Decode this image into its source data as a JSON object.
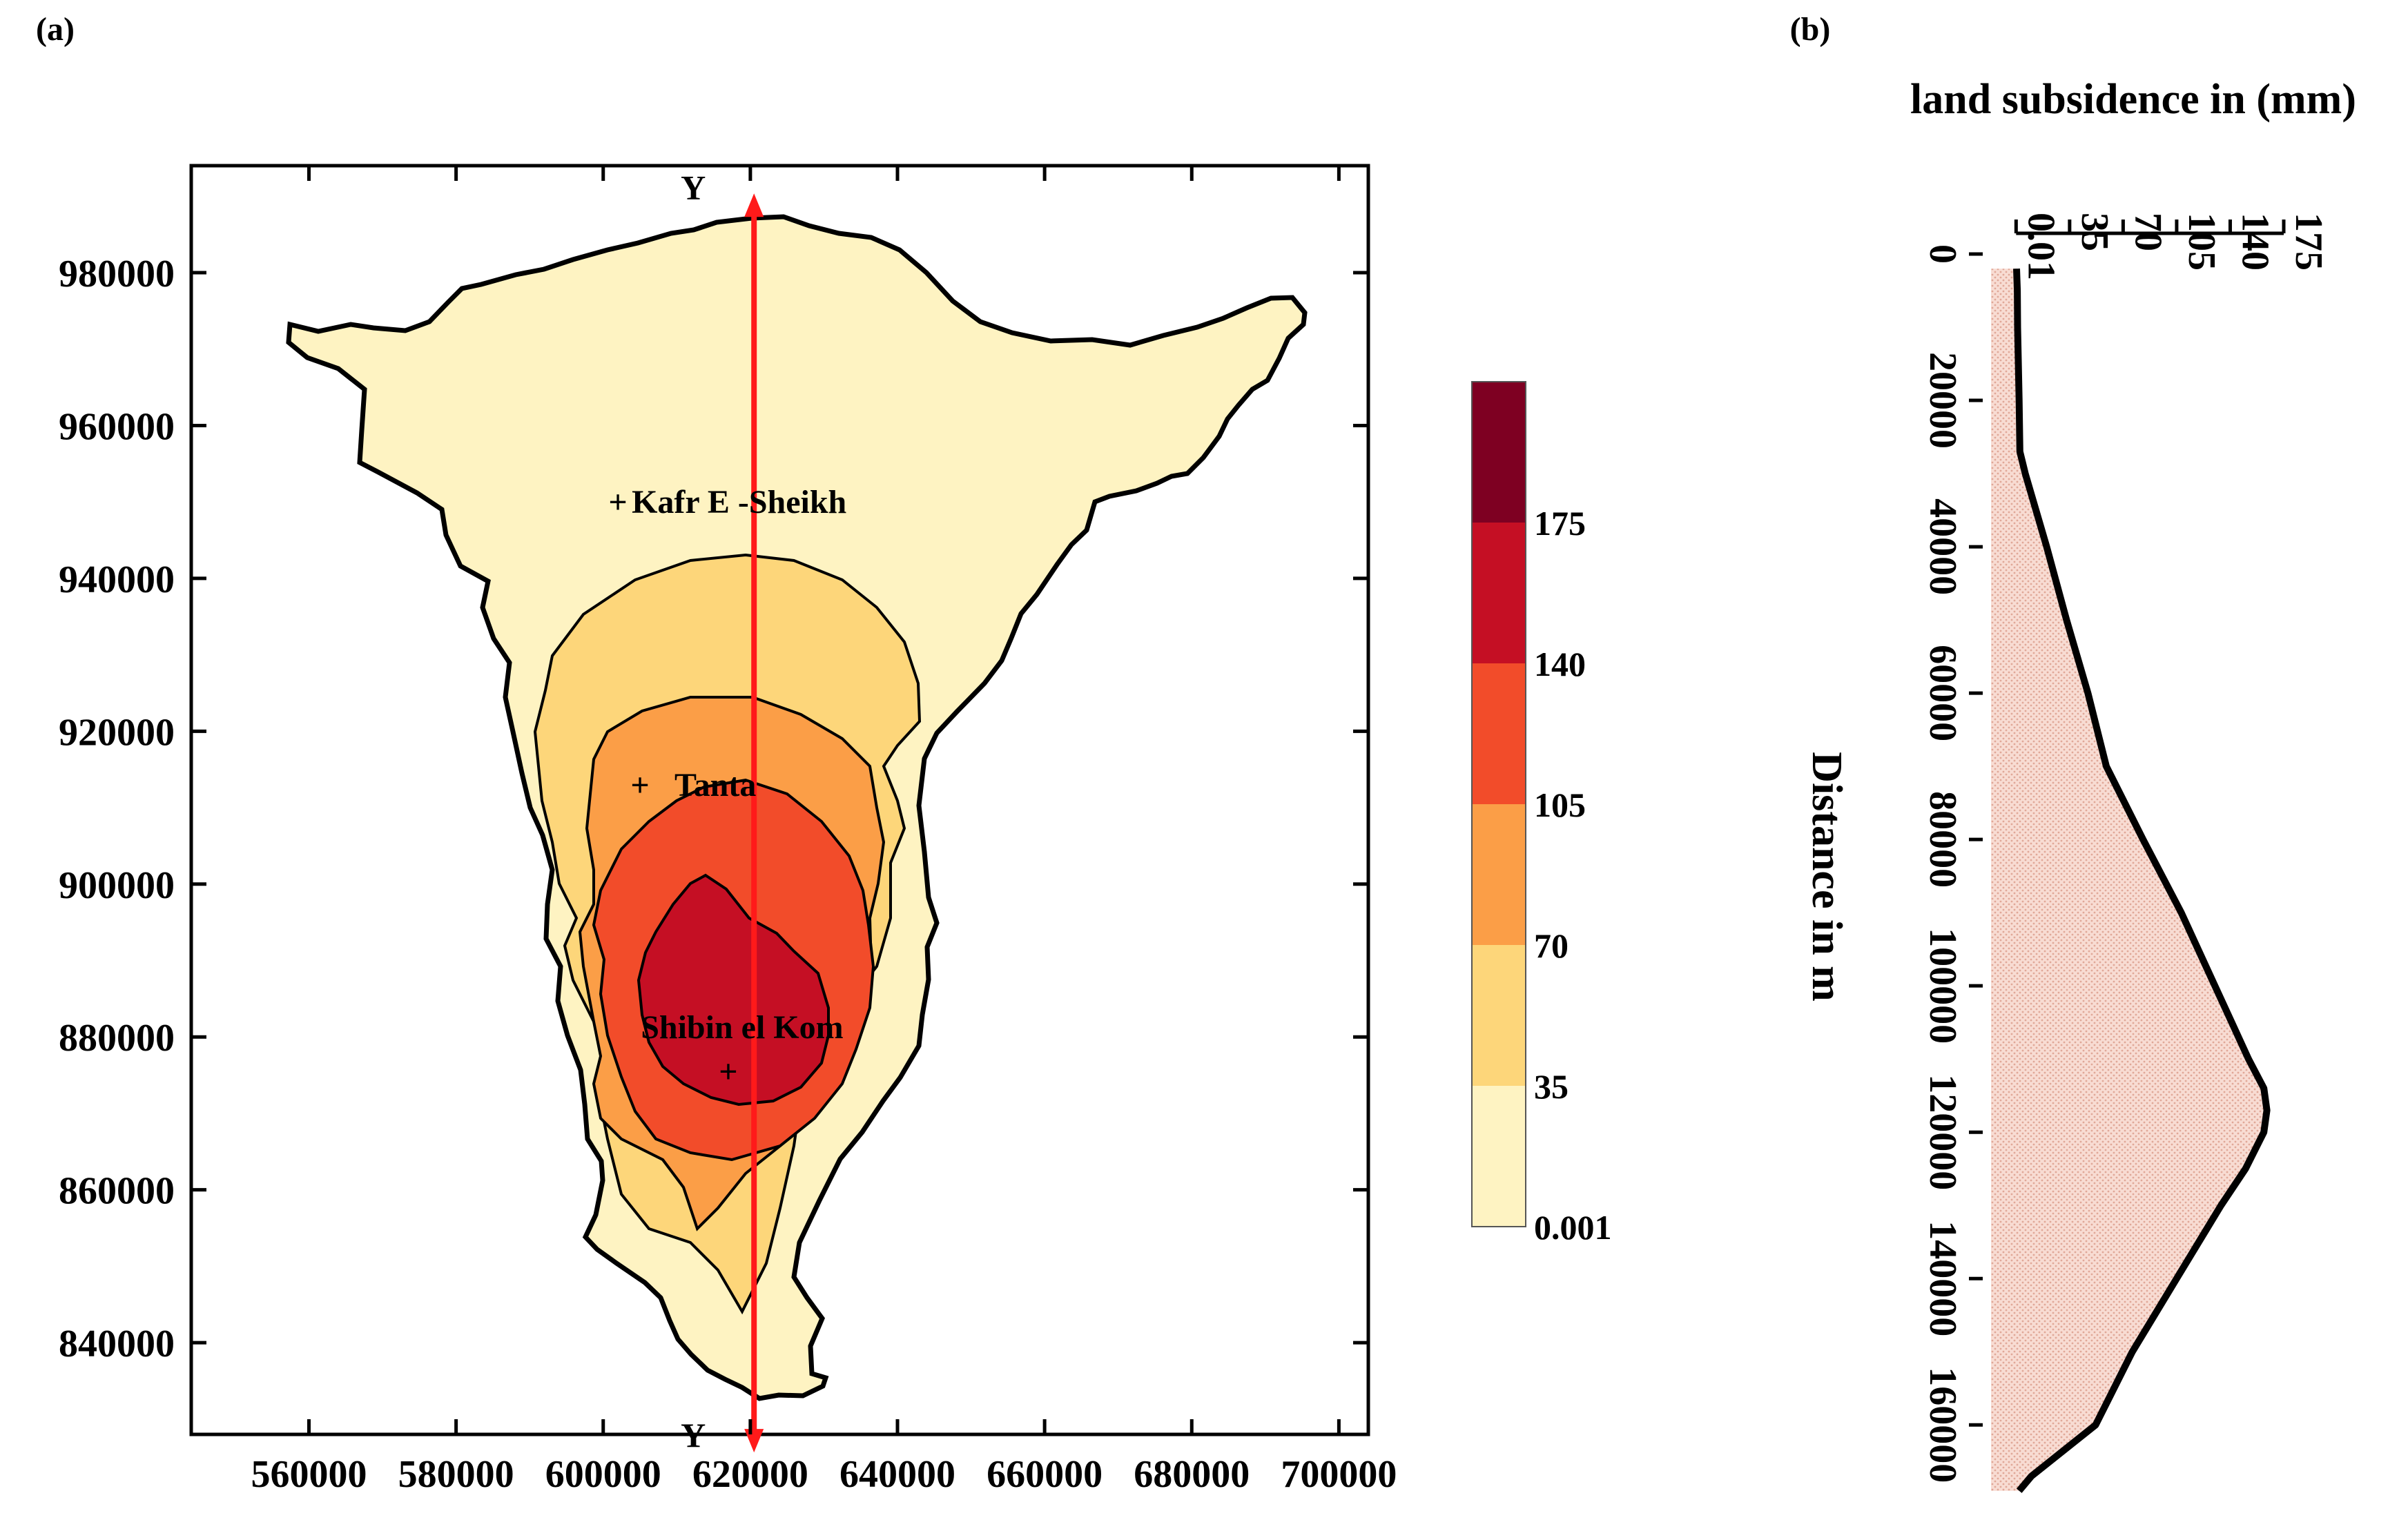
{
  "panel_a": {
    "label": "(a)"
  },
  "panel_b": {
    "label": "(b)"
  },
  "colors": {
    "bins": [
      "#fef3c2",
      "#fdd67a",
      "#fb9e47",
      "#f24c2a",
      "#c50f24",
      "#7e0022"
    ],
    "section_line": "#ff1a1a",
    "boundary": "#000000",
    "profile_fill": "#f5d2c8"
  },
  "chart_data": [
    {
      "type": "heatmap",
      "title": "",
      "x_ticks": [
        560000,
        580000,
        600000,
        620000,
        640000,
        660000,
        680000,
        700000
      ],
      "y_ticks": [
        840000,
        860000,
        880000,
        900000,
        920000,
        940000,
        960000,
        980000
      ],
      "xlim": [
        544000,
        704000
      ],
      "ylim": [
        828000,
        994000
      ],
      "legend": {
        "position": "right",
        "breaks": [
          0.001,
          35,
          70,
          105,
          140,
          175
        ],
        "labels": [
          "0.001",
          "35",
          "70",
          "105",
          "140",
          "175"
        ]
      },
      "cities": [
        {
          "name": "Kafr E -Sheikh",
          "x": 602000,
          "y": 950000
        },
        {
          "name": "Tanta",
          "x": 605000,
          "y": 913000
        },
        {
          "name": "Shibin el Kom",
          "x": 617000,
          "y": 875500
        }
      ],
      "section": {
        "x": 620500,
        "y_start": 990000,
        "y_end": 826000,
        "label_top": "Y",
        "label_bottom": "Y"
      }
    },
    {
      "type": "area",
      "title": "land subsidence in (mm)",
      "xlabel": "land subsidence in (mm)",
      "ylabel": "Distance in m",
      "x_ticks": [
        0.01,
        35,
        70,
        105,
        140,
        175
      ],
      "x_tick_labels": [
        "0.01",
        "35",
        "70",
        "105",
        "140",
        "175"
      ],
      "xlim": [
        -20,
        175
      ],
      "y_ticks": [
        0,
        20000,
        40000,
        60000,
        80000,
        100000,
        120000,
        140000,
        160000
      ],
      "ylim": [
        0,
        169500
      ],
      "series": [
        {
          "name": "land subsidence",
          "distance": [
            2000,
            5000,
            10000,
            20000,
            27000,
            30000,
            40000,
            50000,
            60000,
            70000,
            80000,
            90000,
            100000,
            105000,
            110000,
            114000,
            117000,
            120000,
            125000,
            130000,
            140000,
            150000,
            160000,
            167000,
            169000
          ],
          "subsidence": [
            0.3,
            0.8,
            1,
            2,
            2.5,
            6,
            20,
            33,
            47,
            59,
            83,
            108,
            130,
            141,
            152,
            162,
            164,
            162,
            150,
            134,
            105,
            76,
            52,
            10,
            2
          ]
        }
      ]
    }
  ]
}
